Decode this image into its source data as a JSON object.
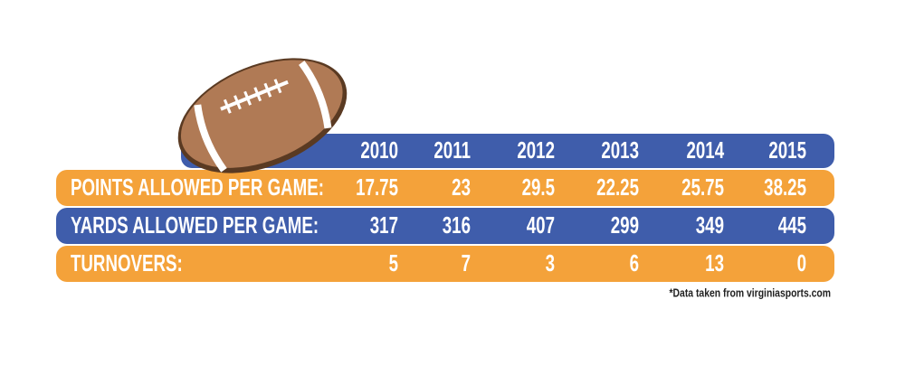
{
  "table": {
    "columns": [
      "2010",
      "2011",
      "2012",
      "2013",
      "2014",
      "2015"
    ],
    "rows": [
      {
        "label": "POINTS ALLOWED PER GAME:",
        "cells": [
          "17.75",
          "23",
          "29.5",
          "22.25",
          "25.75",
          "38.25"
        ]
      },
      {
        "label": "YARDS ALLOWED PER GAME:",
        "cells": [
          "317",
          "316",
          "407",
          "299",
          "349",
          "445"
        ]
      },
      {
        "label": "TURNOVERS:",
        "cells": [
          "5",
          "7",
          "3",
          "6",
          "13",
          "0"
        ]
      }
    ]
  },
  "footnote": "*Data taken from virginiasports.com"
}
